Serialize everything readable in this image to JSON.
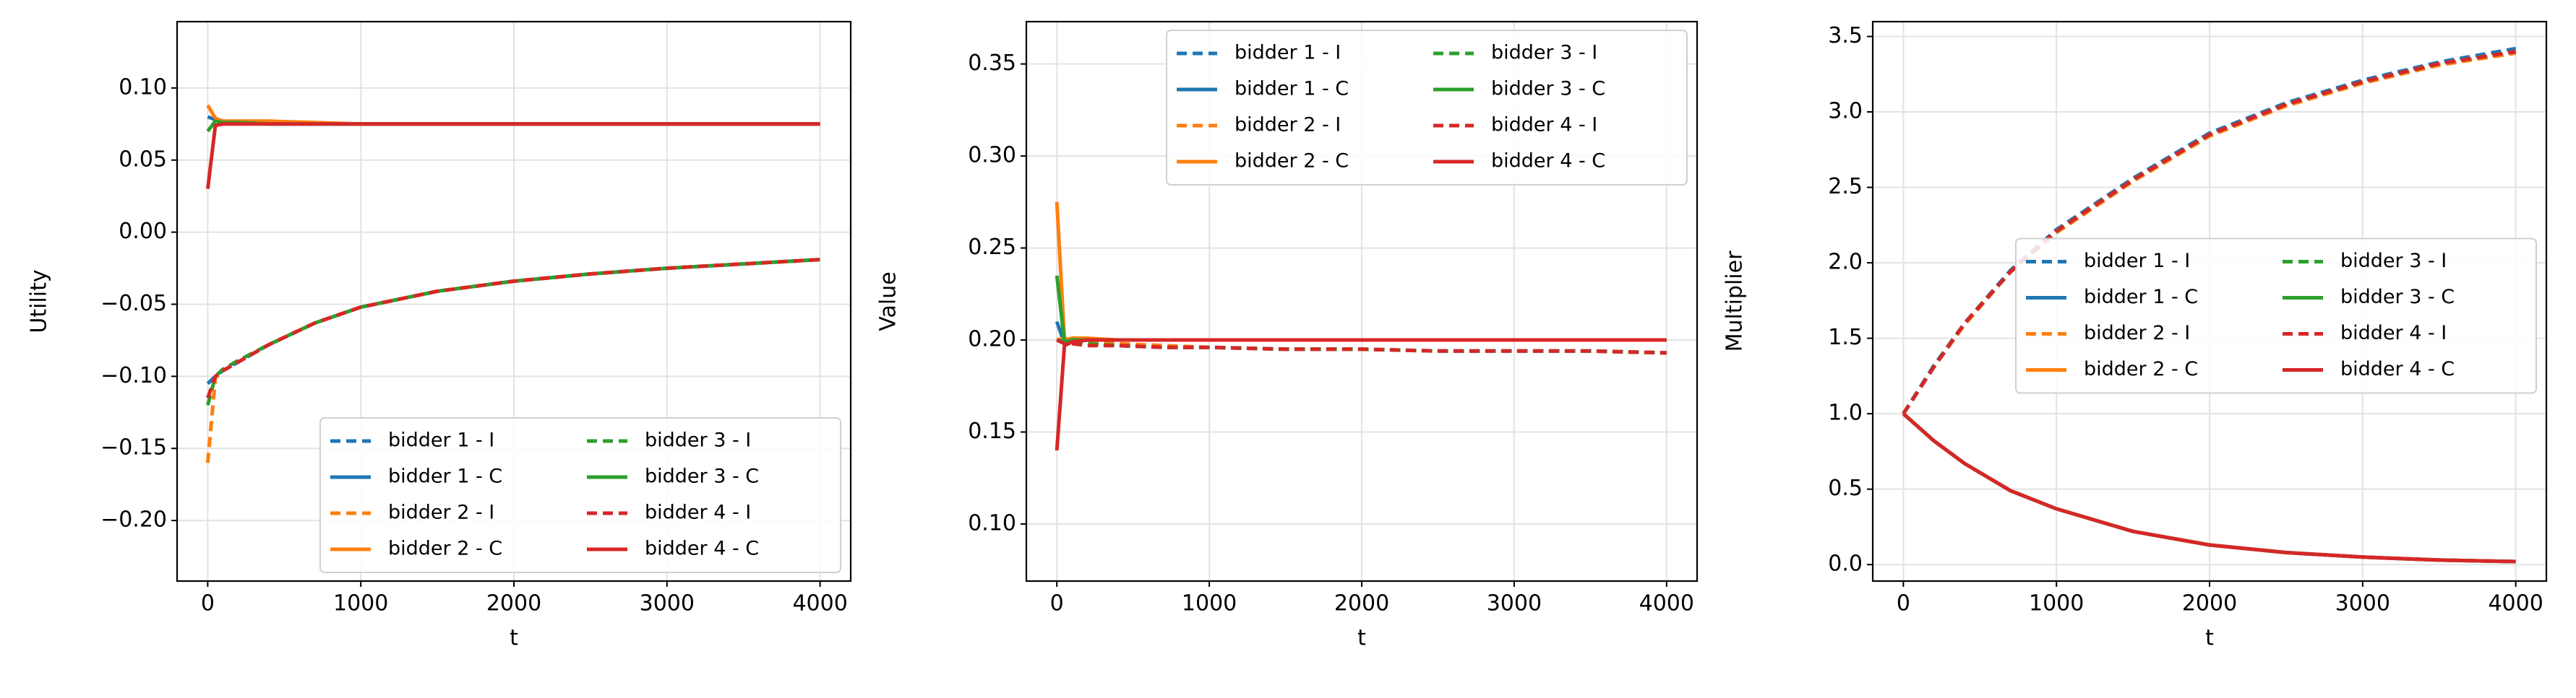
{
  "chart_data": [
    {
      "type": "line",
      "xlabel": "t",
      "ylabel": "Utility",
      "grid": true,
      "legend": "lower right",
      "legend_columns": 2,
      "xlim": [
        -200,
        4200
      ],
      "xticks": [
        0,
        1000,
        2000,
        3000,
        4000
      ],
      "ylim": [
        -0.242,
        0.146
      ],
      "yticks": [
        {
          "value": -0.2,
          "label": "−0.20"
        },
        {
          "value": -0.15,
          "label": "−0.15"
        },
        {
          "value": -0.1,
          "label": "−0.10"
        },
        {
          "value": -0.05,
          "label": "−0.05"
        },
        {
          "value": 0,
          "label": "0.00"
        },
        0.05,
        {
          "value": 0.1,
          "label": "0.10"
        }
      ],
      "x": [
        0,
        50,
        100,
        200,
        400,
        700,
        1000,
        1500,
        2000,
        2500,
        3000,
        3500,
        4000
      ],
      "series": [
        {
          "name": "bidder 1 - I",
          "color": "#1f77b4",
          "linestyle": "dashed",
          "values": [
            -0.105,
            -0.1,
            -0.096,
            -0.09,
            -0.078,
            -0.063,
            -0.052,
            -0.041,
            -0.034,
            -0.029,
            -0.025,
            -0.022,
            -0.019
          ]
        },
        {
          "name": "bidder 1 - C",
          "color": "#1f77b4",
          "linestyle": "solid",
          "values": [
            0.08,
            0.078,
            0.076,
            0.076,
            0.075,
            0.075,
            0.075,
            0.075,
            0.075,
            0.075,
            0.075,
            0.075,
            0.075
          ]
        },
        {
          "name": "bidder 2 - I",
          "color": "#ff7f0e",
          "linestyle": "dashed",
          "values": [
            -0.16,
            -0.101,
            -0.096,
            -0.09,
            -0.078,
            -0.063,
            -0.052,
            -0.041,
            -0.034,
            -0.029,
            -0.025,
            -0.022,
            -0.019
          ]
        },
        {
          "name": "bidder 2 - C",
          "color": "#ff7f0e",
          "linestyle": "solid",
          "values": [
            0.088,
            0.079,
            0.077,
            0.077,
            0.077,
            0.076,
            0.075,
            0.075,
            0.075,
            0.075,
            0.075,
            0.075,
            0.075
          ]
        },
        {
          "name": "bidder 3 - I",
          "color": "#2ca02c",
          "linestyle": "dashed",
          "values": [
            -0.12,
            -0.1,
            -0.095,
            -0.089,
            -0.078,
            -0.063,
            -0.052,
            -0.041,
            -0.034,
            -0.029,
            -0.025,
            -0.022,
            -0.019
          ]
        },
        {
          "name": "bidder 3 - C",
          "color": "#2ca02c",
          "linestyle": "solid",
          "values": [
            0.07,
            0.077,
            0.076,
            0.076,
            0.075,
            0.075,
            0.075,
            0.075,
            0.075,
            0.075,
            0.075,
            0.075,
            0.075
          ]
        },
        {
          "name": "bidder 4 - I",
          "color": "#d62728",
          "linestyle": "dashed",
          "values": [
            -0.115,
            -0.1,
            -0.096,
            -0.09,
            -0.078,
            -0.063,
            -0.052,
            -0.041,
            -0.034,
            -0.029,
            -0.025,
            -0.022,
            -0.019
          ]
        },
        {
          "name": "bidder 4 - C",
          "color": "#d62728",
          "linestyle": "solid",
          "values": [
            0.03,
            0.074,
            0.075,
            0.075,
            0.075,
            0.075,
            0.075,
            0.075,
            0.075,
            0.075,
            0.075,
            0.075,
            0.075
          ]
        }
      ]
    },
    {
      "type": "line",
      "xlabel": "t",
      "ylabel": "Value",
      "grid": true,
      "legend": "upper right",
      "legend_columns": 2,
      "xlim": [
        -200,
        4200
      ],
      "xticks": [
        0,
        1000,
        2000,
        3000,
        4000
      ],
      "ylim": [
        0.069,
        0.373
      ],
      "yticks": [
        {
          "value": 0.1,
          "label": "0.10"
        },
        0.15,
        {
          "value": 0.2,
          "label": "0.20"
        },
        0.25,
        {
          "value": 0.3,
          "label": "0.30"
        },
        0.35
      ],
      "x": [
        0,
        50,
        100,
        200,
        400,
        700,
        1000,
        1500,
        2000,
        2500,
        3000,
        3500,
        4000
      ],
      "series": [
        {
          "name": "bidder 1 - I",
          "color": "#1f77b4",
          "linestyle": "dashed",
          "values": [
            0.2,
            0.2,
            0.199,
            0.198,
            0.197,
            0.196,
            0.196,
            0.195,
            0.195,
            0.194,
            0.194,
            0.194,
            0.193
          ]
        },
        {
          "name": "bidder 1 - C",
          "color": "#1f77b4",
          "linestyle": "solid",
          "values": [
            0.21,
            0.198,
            0.199,
            0.2,
            0.2,
            0.2,
            0.2,
            0.2,
            0.2,
            0.2,
            0.2,
            0.2,
            0.2
          ]
        },
        {
          "name": "bidder 2 - I",
          "color": "#ff7f0e",
          "linestyle": "dashed",
          "values": [
            0.2,
            0.201,
            0.2,
            0.199,
            0.198,
            0.197,
            0.196,
            0.195,
            0.195,
            0.194,
            0.194,
            0.194,
            0.193
          ]
        },
        {
          "name": "bidder 2 - C",
          "color": "#ff7f0e",
          "linestyle": "solid",
          "values": [
            0.275,
            0.2,
            0.201,
            0.201,
            0.2,
            0.2,
            0.2,
            0.2,
            0.2,
            0.2,
            0.2,
            0.2,
            0.2
          ]
        },
        {
          "name": "bidder 3 - I",
          "color": "#2ca02c",
          "linestyle": "dashed",
          "values": [
            0.2,
            0.199,
            0.199,
            0.198,
            0.197,
            0.196,
            0.196,
            0.195,
            0.195,
            0.194,
            0.194,
            0.194,
            0.193
          ]
        },
        {
          "name": "bidder 3 - C",
          "color": "#2ca02c",
          "linestyle": "solid",
          "values": [
            0.235,
            0.199,
            0.2,
            0.2,
            0.2,
            0.2,
            0.2,
            0.2,
            0.2,
            0.2,
            0.2,
            0.2,
            0.2
          ]
        },
        {
          "name": "bidder 4 - I",
          "color": "#d62728",
          "linestyle": "dashed",
          "values": [
            0.2,
            0.198,
            0.198,
            0.197,
            0.197,
            0.196,
            0.196,
            0.195,
            0.195,
            0.194,
            0.194,
            0.194,
            0.193
          ]
        },
        {
          "name": "bidder 4 - C",
          "color": "#d62728",
          "linestyle": "solid",
          "values": [
            0.14,
            0.197,
            0.199,
            0.2,
            0.2,
            0.2,
            0.2,
            0.2,
            0.2,
            0.2,
            0.2,
            0.2,
            0.2
          ]
        }
      ]
    },
    {
      "type": "line",
      "xlabel": "t",
      "ylabel": "Multiplier",
      "grid": true,
      "legend": "center right",
      "legend_columns": 2,
      "xlim": [
        -200,
        4200
      ],
      "xticks": [
        0,
        1000,
        2000,
        3000,
        4000
      ],
      "ylim": [
        -0.109,
        3.598
      ],
      "yticks": [
        {
          "value": 0,
          "label": "0.0"
        },
        0.5,
        {
          "value": 1,
          "label": "1.0"
        },
        1.5,
        {
          "value": 2,
          "label": "2.0"
        },
        2.5,
        {
          "value": 3,
          "label": "3.0"
        },
        3.5
      ],
      "x": [
        0,
        200,
        400,
        700,
        1000,
        1500,
        2000,
        2500,
        3000,
        3500,
        4000
      ],
      "series": [
        {
          "name": "bidder 1 - I",
          "color": "#1f77b4",
          "linestyle": "dashed",
          "values": [
            1,
            1.32,
            1.6,
            1.95,
            2.22,
            2.56,
            2.86,
            3.06,
            3.21,
            3.33,
            3.42
          ]
        },
        {
          "name": "bidder 1 - C",
          "color": "#1f77b4",
          "linestyle": "solid",
          "values": [
            1,
            0.82,
            0.67,
            0.49,
            0.37,
            0.22,
            0.13,
            0.08,
            0.05,
            0.03,
            0.02
          ]
        },
        {
          "name": "bidder 2 - I",
          "color": "#ff7f0e",
          "linestyle": "dashed",
          "values": [
            1,
            1.31,
            1.59,
            1.94,
            2.2,
            2.54,
            2.84,
            3.04,
            3.19,
            3.31,
            3.39
          ]
        },
        {
          "name": "bidder 2 - C",
          "color": "#ff7f0e",
          "linestyle": "solid",
          "values": [
            1,
            0.82,
            0.67,
            0.49,
            0.37,
            0.22,
            0.13,
            0.08,
            0.05,
            0.03,
            0.02
          ]
        },
        {
          "name": "bidder 3 - I",
          "color": "#2ca02c",
          "linestyle": "dashed",
          "values": [
            1,
            1.31,
            1.6,
            1.94,
            2.21,
            2.55,
            2.85,
            3.05,
            3.2,
            3.32,
            3.4
          ]
        },
        {
          "name": "bidder 3 - C",
          "color": "#2ca02c",
          "linestyle": "solid",
          "values": [
            1,
            0.82,
            0.67,
            0.49,
            0.37,
            0.22,
            0.13,
            0.08,
            0.05,
            0.03,
            0.02
          ]
        },
        {
          "name": "bidder 4 - I",
          "color": "#d62728",
          "linestyle": "dashed",
          "values": [
            1,
            1.31,
            1.6,
            1.94,
            2.21,
            2.55,
            2.85,
            3.05,
            3.2,
            3.32,
            3.4
          ]
        },
        {
          "name": "bidder 4 - C",
          "color": "#d62728",
          "linestyle": "solid",
          "values": [
            1,
            0.82,
            0.67,
            0.49,
            0.37,
            0.22,
            0.13,
            0.08,
            0.05,
            0.03,
            0.02
          ]
        }
      ]
    }
  ]
}
